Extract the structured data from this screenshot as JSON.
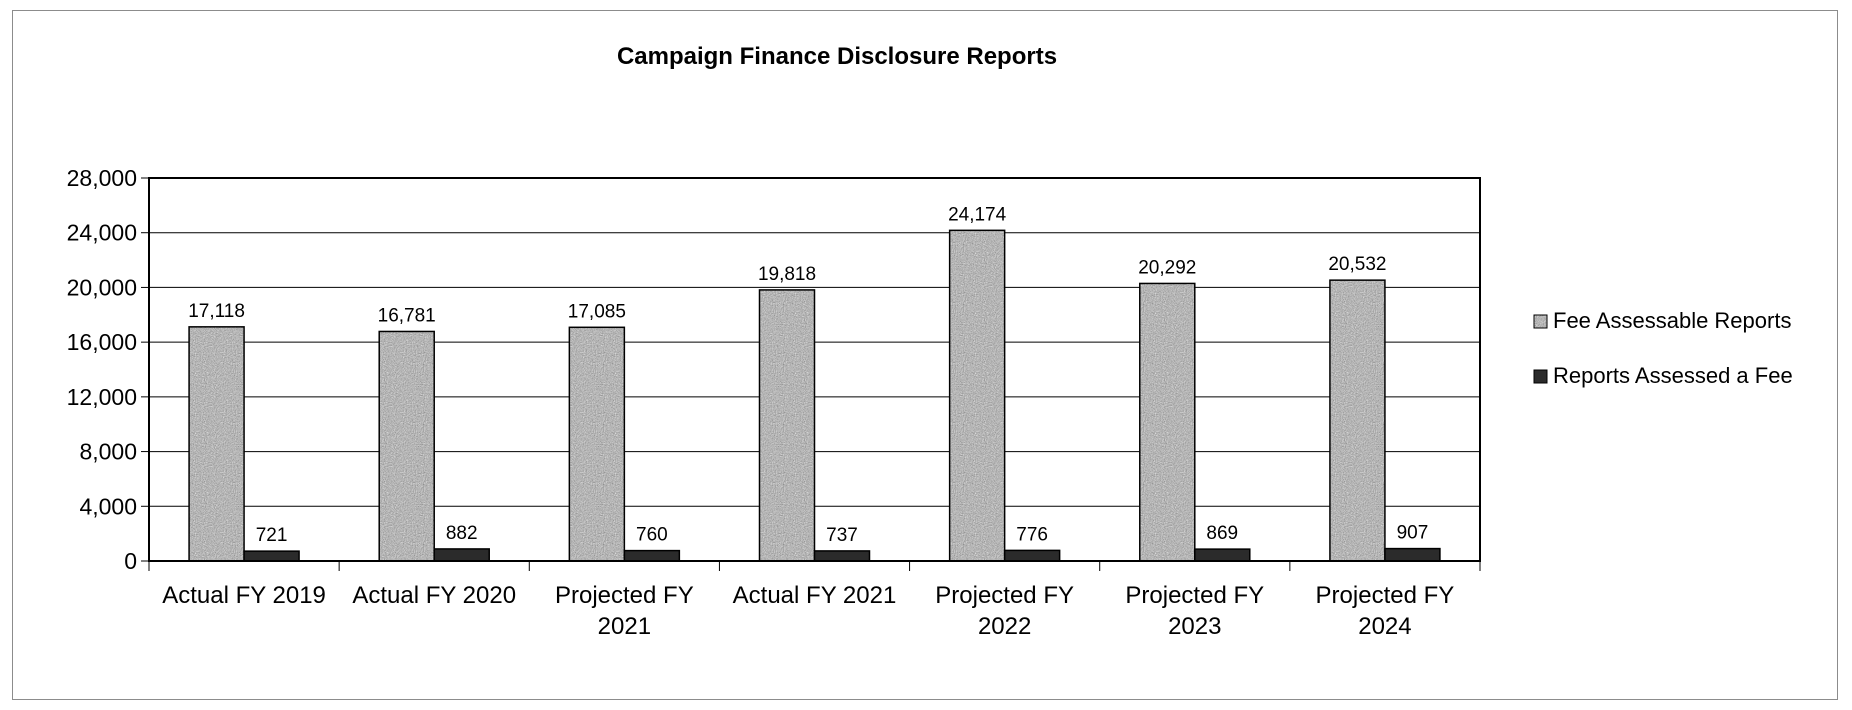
{
  "chart_data": {
    "type": "bar",
    "title": "Campaign Finance Disclosure Reports",
    "xlabel": "",
    "ylabel": "",
    "categories": [
      [
        "Actual FY 2019"
      ],
      [
        "Actual FY 2020"
      ],
      [
        "Projected FY",
        "2021"
      ],
      [
        "Actual FY 2021"
      ],
      [
        "Projected FY",
        "2022"
      ],
      [
        "Projected FY",
        "2023"
      ],
      [
        "Projected FY",
        "2024"
      ]
    ],
    "series": [
      {
        "name": "Fee Assessable Reports",
        "values": [
          17118,
          16781,
          17085,
          19818,
          24174,
          20292,
          20532
        ],
        "color": "#b8b8b8"
      },
      {
        "name": "Reports Assessed a Fee",
        "values": [
          721,
          882,
          760,
          737,
          776,
          869,
          907
        ],
        "color": "#2b2b2b"
      }
    ],
    "ylim": [
      0,
      28000
    ],
    "yticks": [
      0,
      4000,
      8000,
      12000,
      16000,
      20000,
      24000,
      28000
    ],
    "ytick_labels": [
      "0",
      "4,000",
      "8,000",
      "12,000",
      "16,000",
      "20,000",
      "24,000",
      "28,000"
    ],
    "data_labels": [
      [
        "17,118",
        "16,781",
        "17,085",
        "19,818",
        "24,174",
        "20,292",
        "20,532"
      ],
      [
        "721",
        "882",
        "760",
        "737",
        "776",
        "869",
        "907"
      ]
    ],
    "grid": true,
    "legend_position": "right"
  }
}
